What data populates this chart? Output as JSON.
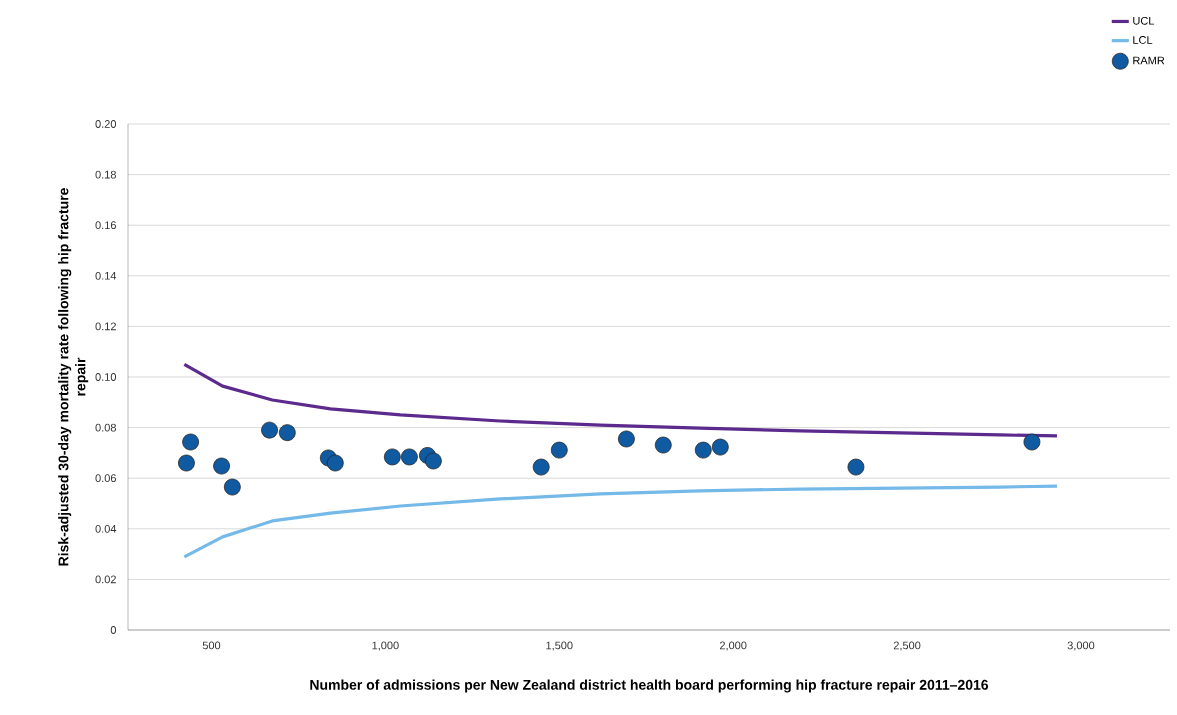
{
  "chart_data": {
    "type": "scatter",
    "xlabel": "Number of admissions per New Zealand district health board performing hip fracture repair 2011–2016",
    "ylabel": "Risk-adjusted 30-day mortality rate following hip fracture repair",
    "xlim": [
      260,
      3256
    ],
    "xticks": [
      500,
      {
        "value": 1000,
        "label": "1,000"
      },
      {
        "value": 1500,
        "label": "1,500"
      },
      {
        "value": 2000,
        "label": "2,000"
      },
      {
        "value": 2500,
        "label": "2,500"
      },
      {
        "value": 3000,
        "label": "3,000"
      }
    ],
    "ylim": [
      0,
      0.2
    ],
    "yticks": [
      0,
      {
        "value": 0.02,
        "label": "0.02"
      },
      {
        "value": 0.04,
        "label": "0.04"
      },
      {
        "value": 0.06,
        "label": "0.06"
      },
      {
        "value": 0.08,
        "label": "0.08"
      },
      {
        "value": 0.1,
        "label": "0.10"
      },
      {
        "value": 0.12,
        "label": "0.12"
      },
      {
        "value": 0.14,
        "label": "0.14"
      },
      {
        "value": 0.16,
        "label": "0.16"
      },
      {
        "value": 0.18,
        "label": "0.18"
      },
      {
        "value": 0.2,
        "label": "0.20"
      }
    ],
    "grid": "y",
    "legend": "top right",
    "series": [
      {
        "name": "UCL",
        "type": "line",
        "marker": "none",
        "color": "#5b2a8c",
        "line_style": "solid",
        "x": [
          422,
          532,
          675,
          842,
          1043,
          1330,
          1618,
          1905,
          2193,
          2480,
          2767,
          2931
        ],
        "values": [
          0.105,
          0.0964,
          0.0909,
          0.0874,
          0.085,
          0.0826,
          0.081,
          0.0798,
          0.0787,
          0.0779,
          0.0771,
          0.0767
        ]
      },
      {
        "name": "LCL",
        "type": "line",
        "marker": "none",
        "color": "#74b9e8",
        "line_style": "solid",
        "x": [
          422,
          532,
          675,
          842,
          1043,
          1330,
          1618,
          1905,
          2193,
          2480,
          2767,
          2931
        ],
        "values": [
          0.0289,
          0.0368,
          0.0431,
          0.0462,
          0.049,
          0.0518,
          0.0538,
          0.055,
          0.0557,
          0.0561,
          0.0565,
          0.0569
        ]
      },
      {
        "name": "RAMR",
        "color": "#0f5aa0",
        "marker": "circle",
        "x": [
          428,
          440,
          529,
          560,
          667,
          718,
          836,
          856,
          1020,
          1069,
          1121,
          1138,
          1448,
          1500,
          1693,
          1799,
          1914,
          1963,
          2353,
          2859
        ],
        "values": [
          0.066,
          0.0743,
          0.0648,
          0.0565,
          0.079,
          0.078,
          0.068,
          0.066,
          0.0684,
          0.0684,
          0.069,
          0.0668,
          0.0644,
          0.0711,
          0.0755,
          0.0731,
          0.0711,
          0.0723,
          0.0644,
          0.0743
        ]
      }
    ]
  }
}
